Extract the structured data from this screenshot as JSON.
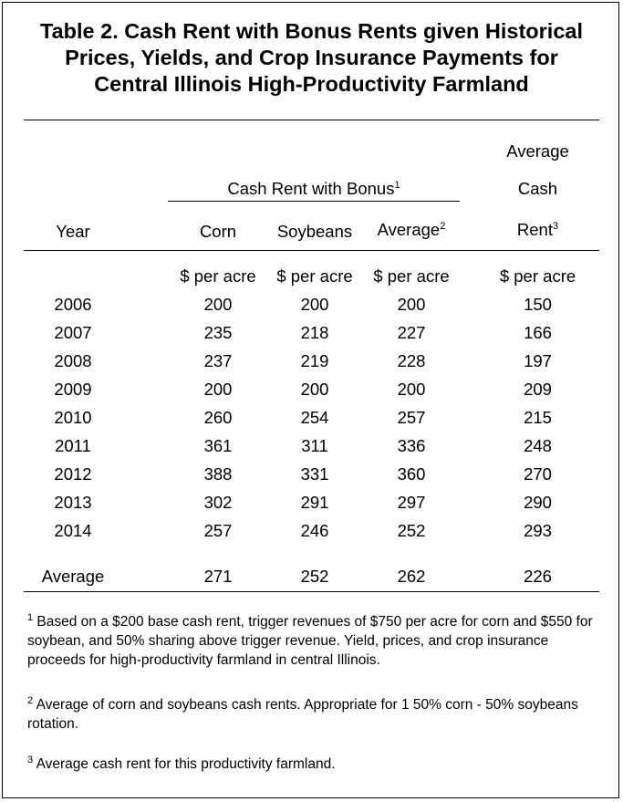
{
  "title_lines": [
    "Table 2.  Cash Rent with Bonus Rents given Historical",
    "Prices, Yields, and Crop Insurance Payments for",
    "Central Illinois High-Productivity Farmland"
  ],
  "header": {
    "group_label": "Cash Rent with Bonus",
    "group_sup": "1",
    "year": "Year",
    "corn": "Corn",
    "soybeans": "Soybeans",
    "average": "Average",
    "average_sup": "2",
    "rent_line1": "Average",
    "rent_line2": "Cash",
    "rent_line3": "Rent",
    "rent_sup": "3"
  },
  "units": {
    "corn": "$ per acre",
    "soybeans": "$ per acre",
    "average": "$ per acre",
    "rent": "$ per acre"
  },
  "rows": [
    {
      "year": "2006",
      "corn": "200",
      "soybeans": "200",
      "average": "200",
      "rent": "150"
    },
    {
      "year": "2007",
      "corn": "235",
      "soybeans": "218",
      "average": "227",
      "rent": "166"
    },
    {
      "year": "2008",
      "corn": "237",
      "soybeans": "219",
      "average": "228",
      "rent": "197"
    },
    {
      "year": "2009",
      "corn": "200",
      "soybeans": "200",
      "average": "200",
      "rent": "209"
    },
    {
      "year": "2010",
      "corn": "260",
      "soybeans": "254",
      "average": "257",
      "rent": "215"
    },
    {
      "year": "2011",
      "corn": "361",
      "soybeans": "311",
      "average": "336",
      "rent": "248"
    },
    {
      "year": "2012",
      "corn": "388",
      "soybeans": "331",
      "average": "360",
      "rent": "270"
    },
    {
      "year": "2013",
      "corn": "302",
      "soybeans": "291",
      "average": "297",
      "rent": "290"
    },
    {
      "year": "2014",
      "corn": "257",
      "soybeans": "246",
      "average": "252",
      "rent": "293"
    }
  ],
  "average_row": {
    "year": "Average",
    "corn": "271",
    "soybeans": "252",
    "average": "262",
    "rent": "226"
  },
  "footnotes": [
    {
      "mark": "1",
      "text": " Based on a $200 base cash rent, trigger revenues of $750 per acre for corn and $550 for soybean, and 50% sharing above trigger revenue.  Yield, prices, and crop insurance proceeds for high-productivity farmland in central Illinois."
    },
    {
      "mark": "2",
      "text": " Average of corn and soybeans cash rents.  Appropriate for 1 50% corn - 50% soybeans rotation."
    },
    {
      "mark": "3",
      "text": " Average cash rent for this productivity farmland."
    }
  ]
}
